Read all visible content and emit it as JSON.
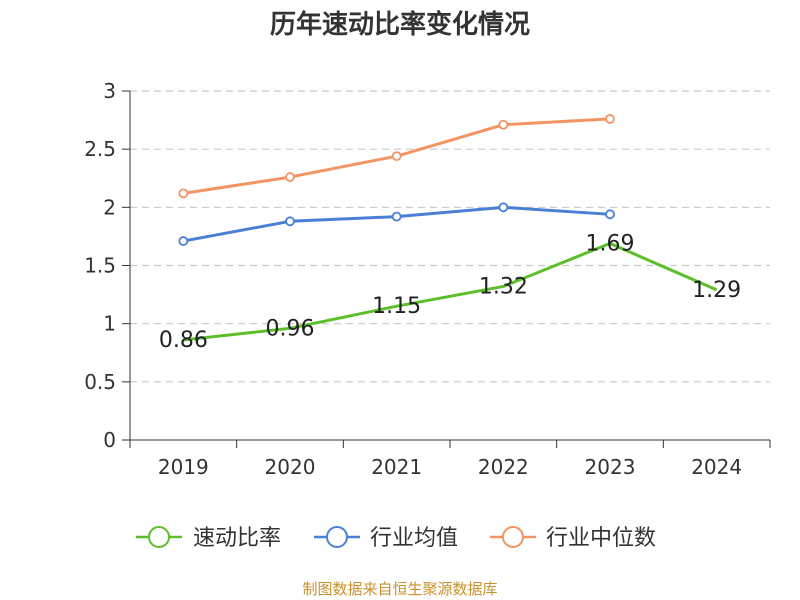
{
  "chart_data": {
    "type": "line",
    "title": "历年速动比率变化情况",
    "categories": [
      "2019",
      "2020",
      "2021",
      "2022",
      "2023",
      "2024"
    ],
    "ylim": [
      0,
      3
    ],
    "yticks": [
      "0",
      "0.5",
      "1",
      "1.5",
      "2",
      "2.5",
      "3"
    ],
    "yticks_values": [
      0,
      0.5,
      1,
      1.5,
      2,
      2.5,
      3
    ],
    "grid": true,
    "legend_position": "bottom",
    "series": [
      {
        "name": "速动比率",
        "color": "#5cbf2a",
        "values": [
          0.86,
          0.96,
          1.15,
          1.32,
          1.69,
          1.29
        ],
        "labels": [
          "0.86",
          "0.96",
          "1.15",
          "1.32",
          "1.69",
          "1.29"
        ]
      },
      {
        "name": "行业均值",
        "color": "#4a7fd6",
        "values": [
          1.71,
          1.88,
          1.92,
          2.0,
          1.94,
          null
        ]
      },
      {
        "name": "行业中位数",
        "color": "#f29463",
        "values": [
          2.12,
          2.26,
          2.44,
          2.71,
          2.76,
          null
        ]
      }
    ]
  },
  "source_text": "制图数据来自恒生聚源数据库"
}
